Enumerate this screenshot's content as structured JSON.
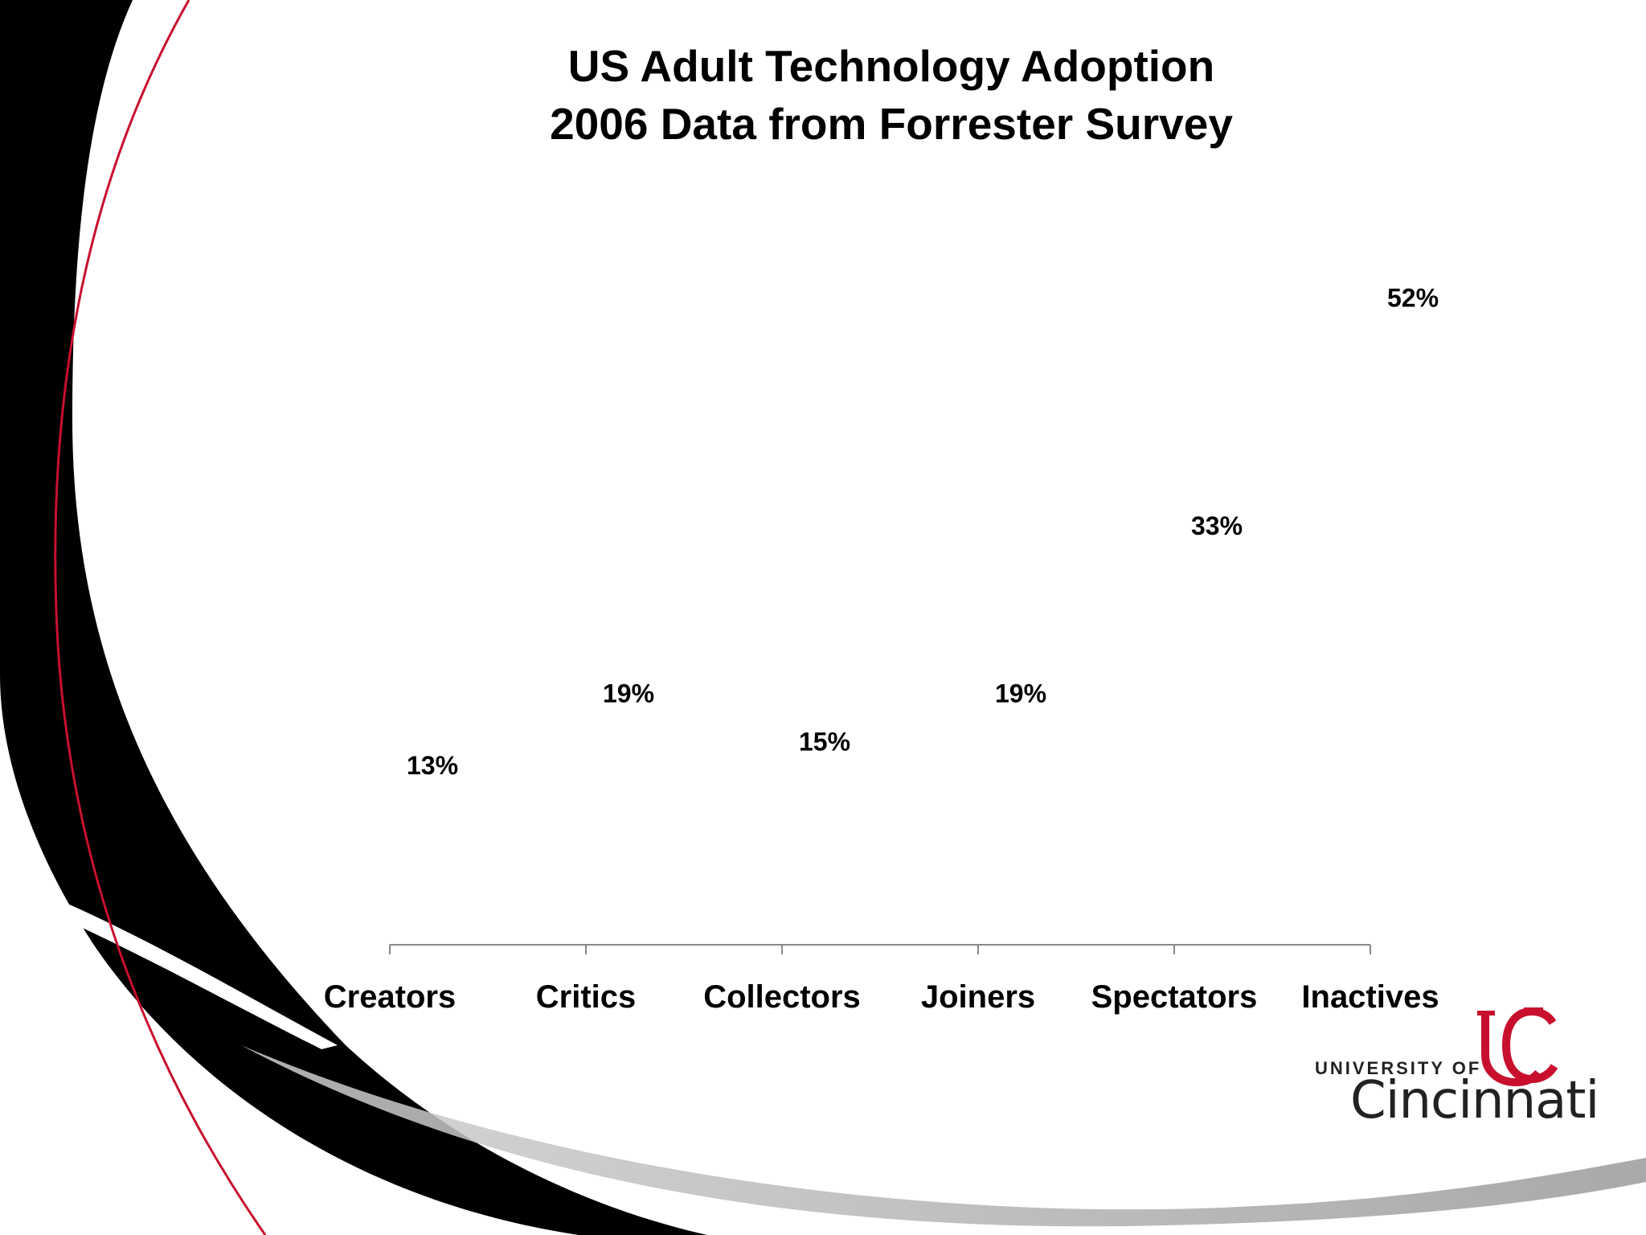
{
  "chart_data": {
    "type": "bar",
    "title": "US Adult Technology Adoption",
    "subtitle": "2006 Data from Forrester Survey",
    "categories": [
      "Creators",
      "Critics",
      "Collectors",
      "Joiners",
      "Spectators",
      "Inactives"
    ],
    "values": [
      13,
      19,
      15,
      19,
      33,
      52
    ],
    "data_labels": [
      "13%",
      "19%",
      "15%",
      "19%",
      "33%",
      "52%"
    ],
    "xlabel": "",
    "ylabel": "",
    "ylim": [
      0,
      60
    ],
    "grid": false
  },
  "branding": {
    "logo_university": "UNIVERSITY OF",
    "logo_name": "Cincinnati",
    "logo_mark_color": "#c8102e"
  },
  "colors": {
    "swoosh_black": "#000000",
    "swoosh_red_line": "#c8102e",
    "swoosh_gray": "#b0b0b0"
  }
}
